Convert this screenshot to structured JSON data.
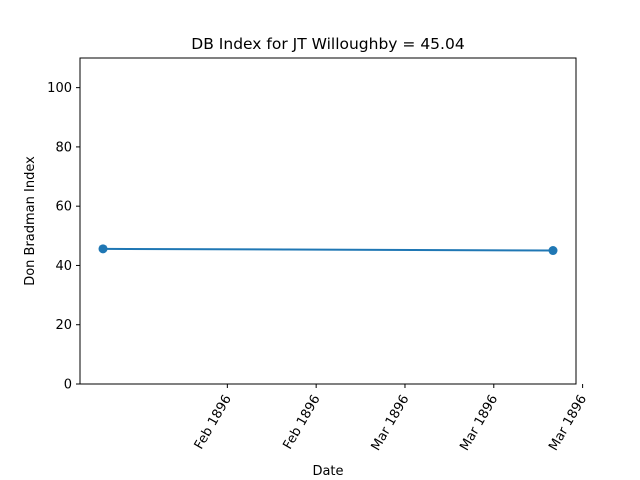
{
  "chart_data": {
    "type": "line",
    "title": "DB Index for JT Willoughby = 45.04",
    "xlabel": "Date",
    "ylabel": "Don Bradman Index",
    "x_tick_labels": [
      "Feb 1896",
      "Feb 1896",
      "Mar 1896",
      "Mar 1896",
      "Mar 1896"
    ],
    "y_ticks": [
      0,
      20,
      40,
      60,
      80,
      100
    ],
    "ylim": [
      0,
      110
    ],
    "grid": false,
    "series": [
      {
        "color": "#1f77b4",
        "points": [
          {
            "x": "1896-01-02",
            "y": 45.6
          },
          {
            "x": "1896-03-18",
            "y": 45.04
          }
        ]
      }
    ]
  }
}
